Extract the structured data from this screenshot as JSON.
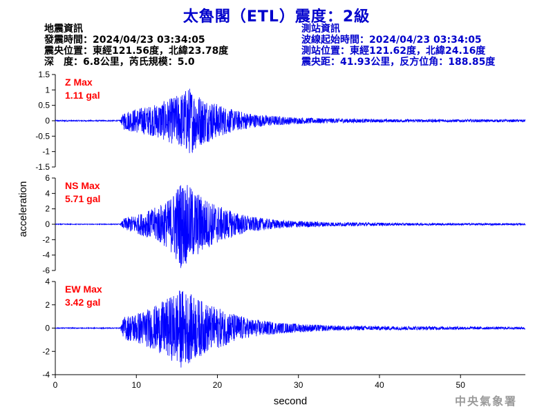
{
  "title": "太魯閣（ETL）震度：2級",
  "event_info": {
    "header": "地震資訊",
    "origin_time": "發震時間：2024/04/23 03:34:05",
    "epicenter": "震央位置：東經121.56度，北緯23.78度",
    "depth_magnitude": "深　度：6.8公里，芮氏規模：5.0"
  },
  "station_info": {
    "header": "測站資訊",
    "wave_start": "波線起始時間：2024/04/23 03:34:05",
    "location": "測站位置：東經121.62度，北緯24.16度",
    "distance": "震央距：41.93公里，反方位角：188.85度"
  },
  "watermark": "中央氣象署",
  "colors": {
    "title": "#0000cc",
    "trace": "#0000ff",
    "max_label": "#ff0000",
    "station_text": "#0000cc"
  },
  "chart_data": {
    "type": "line",
    "xlabel": "second",
    "ylabel": "acceleration",
    "xlim": [
      0,
      58
    ],
    "xticks": [
      0,
      10,
      20,
      30,
      40,
      50
    ],
    "panels": [
      {
        "component": "Z",
        "max_label": "Z Max",
        "max_value": "1.11 gal",
        "ylim": [
          -1.5,
          1.5
        ],
        "yticks": [
          "-1.5",
          "-1",
          "-0.5",
          "0",
          "0.5",
          "1",
          "1.5"
        ],
        "yvalues": [
          -1.5,
          -1,
          -0.5,
          0,
          0.5,
          1,
          1.5
        ],
        "envelope": [
          [
            0,
            0.02
          ],
          [
            8,
            0.02
          ],
          [
            8.5,
            0.3
          ],
          [
            10,
            0.4
          ],
          [
            12,
            0.5
          ],
          [
            14,
            0.7
          ],
          [
            15.5,
            0.9
          ],
          [
            16.5,
            1.11
          ],
          [
            18,
            0.8
          ],
          [
            20,
            0.55
          ],
          [
            22,
            0.35
          ],
          [
            25,
            0.2
          ],
          [
            30,
            0.1
          ],
          [
            40,
            0.05
          ],
          [
            58,
            0.04
          ]
        ]
      },
      {
        "component": "NS",
        "max_label": "NS Max",
        "max_value": "5.71 gal",
        "ylim": [
          -6,
          6
        ],
        "yticks": [
          "-6",
          "-4",
          "-2",
          "0",
          "2",
          "4",
          "6"
        ],
        "yvalues": [
          -6,
          -4,
          -2,
          0,
          2,
          4,
          6
        ],
        "envelope": [
          [
            0,
            0.05
          ],
          [
            8,
            0.05
          ],
          [
            8.5,
            0.8
          ],
          [
            10,
            1.2
          ],
          [
            12,
            2.0
          ],
          [
            14,
            3.2
          ],
          [
            15.5,
            5.71
          ],
          [
            17,
            4.6
          ],
          [
            19,
            3.0
          ],
          [
            21,
            2.0
          ],
          [
            24,
            1.0
          ],
          [
            28,
            0.5
          ],
          [
            35,
            0.25
          ],
          [
            45,
            0.15
          ],
          [
            58,
            0.12
          ]
        ]
      },
      {
        "component": "EW",
        "max_label": "EW Max",
        "max_value": "3.42 gal",
        "ylim": [
          -4,
          4
        ],
        "yticks": [
          "-4",
          "-2",
          "0",
          "2",
          "4"
        ],
        "yvalues": [
          -4,
          -2,
          0,
          2,
          4
        ],
        "envelope": [
          [
            0,
            0.04
          ],
          [
            8,
            0.04
          ],
          [
            8.5,
            1.0
          ],
          [
            10,
            1.3
          ],
          [
            12,
            1.8
          ],
          [
            14,
            2.6
          ],
          [
            15.5,
            3.42
          ],
          [
            17,
            2.8
          ],
          [
            19,
            2.0
          ],
          [
            21,
            1.5
          ],
          [
            24,
            0.8
          ],
          [
            28,
            0.45
          ],
          [
            35,
            0.2
          ],
          [
            45,
            0.15
          ],
          [
            58,
            0.1
          ]
        ]
      }
    ]
  }
}
